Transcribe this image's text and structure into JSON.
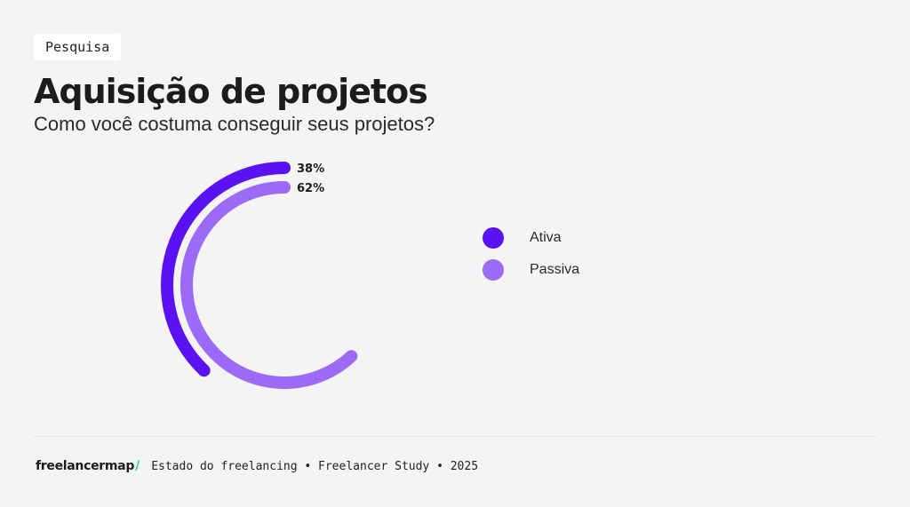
{
  "tag": "Pesquisa",
  "title": "Aquisição de projetos",
  "subtitle": "Como você costuma conseguir seus projetos?",
  "colors": {
    "ativa": "#5b12f2",
    "passiva": "#9b6af6",
    "background": "#f4f4f4",
    "logo_accent": "#1fd1a8"
  },
  "chart_data": {
    "type": "radial-bar",
    "title": "",
    "series": [
      {
        "name": "Ativa",
        "value": 38,
        "label": "38%",
        "color": "#5b12f2"
      },
      {
        "name": "Passiva",
        "value": 62,
        "label": "62%",
        "color": "#9b6af6"
      }
    ],
    "max": 100,
    "legend_position": "right",
    "grid": false
  },
  "legend": [
    {
      "label": "Ativa",
      "color": "#5b12f2"
    },
    {
      "label": "Passiva",
      "color": "#9b6af6"
    }
  ],
  "footer": {
    "logo": "freelancermap",
    "logo_slash": "/",
    "text": "Estado do freelancing • Freelancer Study • 2025"
  }
}
